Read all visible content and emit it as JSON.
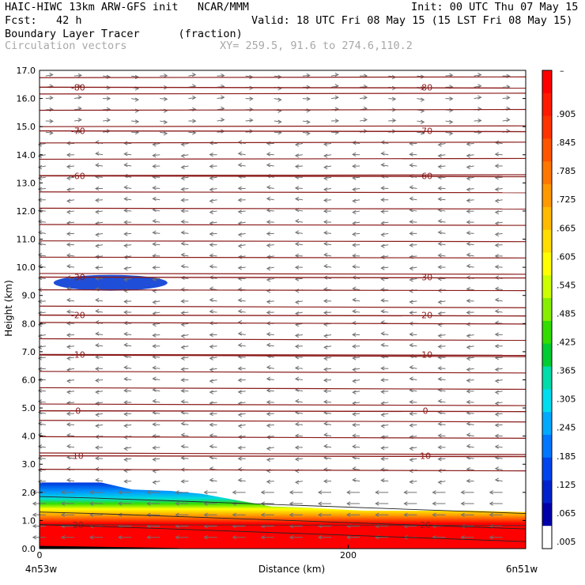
{
  "header": {
    "model": "HAIC-HIWC 13km ARW-GFS init",
    "org": "NCAR/MMM",
    "init": "Init: 00 UTC Thu 07 May 15",
    "fcst_label": "Fcst:",
    "fcst_value": "42 h",
    "valid": "Valid: 18 UTC Fri 08 May 15 (15 LST Fri 08 May 15)",
    "field_name": "Boundary Layer Tracer",
    "field_units": "(fraction)",
    "vectors": "Circulation vectors",
    "xy": "XY= 259.5, 91.6 to 274.6,110.2"
  },
  "colors": {
    "contour": "#8b1a1a",
    "vector": "#707070",
    "blob": "#1f4fd8"
  },
  "chart_data": {
    "type": "heatmap",
    "ylabel": "Height (km)",
    "xlabel": "Distance (km)",
    "x_start_label": "4n53w",
    "x_end_label": "6n51w",
    "x_tick_labels": [
      "0",
      "200"
    ],
    "x_tick_values": [
      0,
      200
    ],
    "xlim": [
      0,
      315
    ],
    "ylim": [
      0,
      17
    ],
    "y_tick_labels": [
      "0.0",
      "1.0",
      "2.0",
      "3.0",
      "4.0",
      "5.0",
      "6.0",
      "7.0",
      "8.0",
      "9.0",
      "10.0",
      "11.0",
      "12.0",
      "13.0",
      "14.0",
      "15.0",
      "16.0",
      "17.0"
    ],
    "colorbar": {
      "top_label": "–",
      "labels": [
        ".905",
        ".845",
        ".785",
        ".725",
        ".665",
        ".605",
        ".545",
        ".485",
        ".425",
        ".365",
        ".305",
        ".245",
        ".185",
        ".125",
        ".065",
        ".005"
      ],
      "colors": [
        "#ff0000",
        "#ff1a00",
        "#ff3300",
        "#ff5500",
        "#ff7700",
        "#ff9900",
        "#ffbb00",
        "#ffdd00",
        "#ffff00",
        "#ccff00",
        "#88ee00",
        "#33dd00",
        "#00cc33",
        "#00ddaa",
        "#00ddee",
        "#00aaff",
        "#0077ff",
        "#0044ee",
        "#0022cc",
        "#0000aa",
        "#ffffff"
      ]
    },
    "temperature_contours": [
      {
        "label": "20",
        "y": 0.85
      },
      {
        "label": "10",
        "y": 3.3
      },
      {
        "label": "0",
        "y": 4.9
      },
      {
        "label": "-10",
        "y": 6.9
      },
      {
        "label": "-20",
        "y": 8.3
      },
      {
        "label": "-30",
        "y": 9.65
      },
      {
        "label": "-60",
        "y": 13.25
      },
      {
        "label": "-70",
        "y": 14.85
      },
      {
        "label": "-80",
        "y": 16.4
      }
    ]
  }
}
